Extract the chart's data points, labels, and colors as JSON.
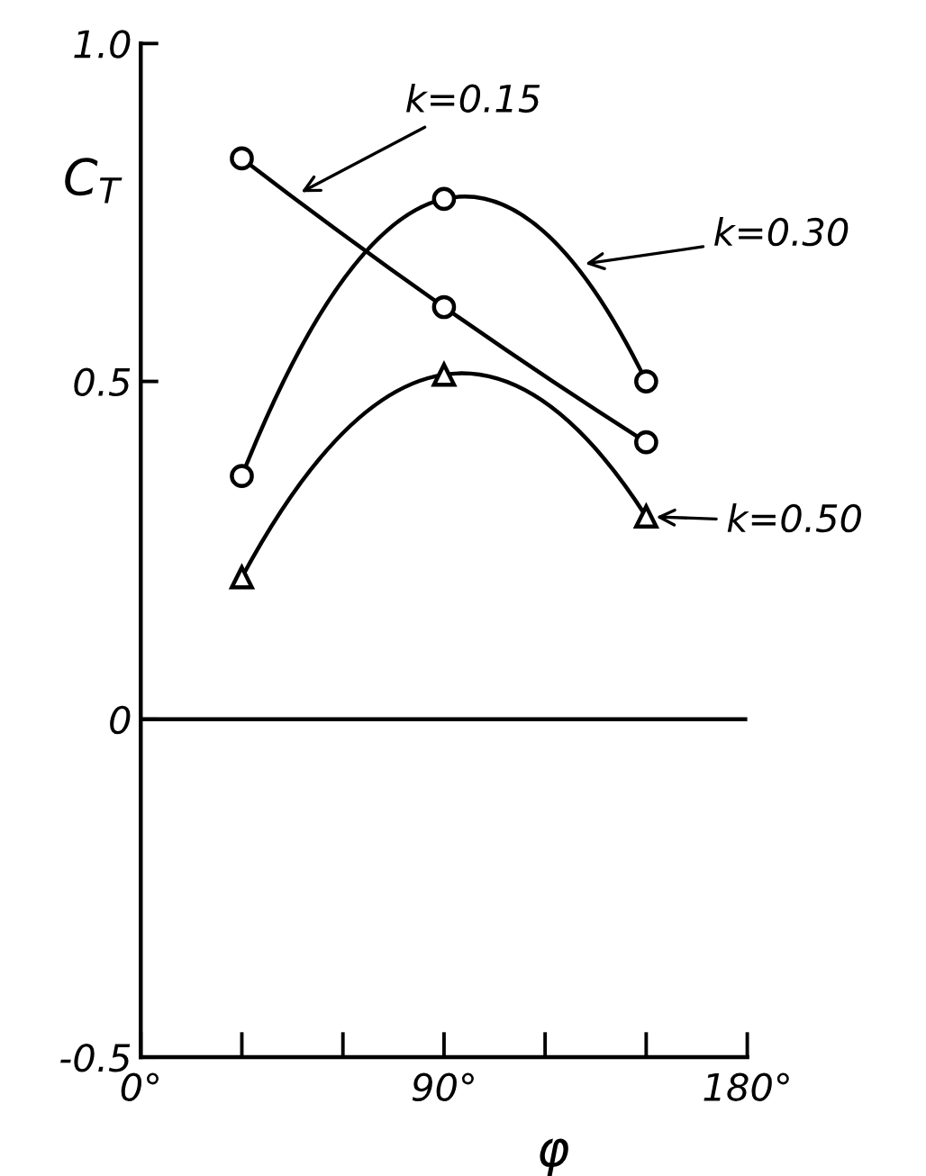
{
  "chart_data": {
    "type": "line",
    "ylabel": "C$_{T}$",
    "xlabel": "φ",
    "xlim": [
      0,
      180
    ],
    "xticks": [
      {
        "value": 0,
        "label": "0°"
      },
      {
        "value": 30,
        "label": null
      },
      {
        "value": 60,
        "label": null
      },
      {
        "value": 90,
        "label": "90°"
      },
      {
        "value": 120,
        "label": null
      },
      {
        "value": 150,
        "label": null
      },
      {
        "value": 180,
        "label": "180°"
      }
    ],
    "ylim": [
      -0.5,
      1.0
    ],
    "yticks": [
      {
        "value": -0.5,
        "label": "-0.5"
      },
      {
        "value": 0,
        "label": "0"
      },
      {
        "value": 0.5,
        "label": "0.5"
      },
      {
        "value": 1.0,
        "label": "1.0"
      }
    ],
    "grid": false,
    "legend": "right",
    "line_style": "solid",
    "ref_lines": [
      {
        "axis": "y",
        "value": 0,
        "label": null,
        "color": "#000000"
      }
    ],
    "series": [
      {
        "name": "k=0.15",
        "color": "#000000",
        "marker": "circle",
        "x": [
          30,
          90,
          150
        ],
        "values": [
          0.83,
          0.61,
          0.41
        ]
      },
      {
        "name": "k=0.30",
        "color": "#000000",
        "marker": "circle",
        "x": [
          30,
          90,
          150
        ],
        "values": [
          0.36,
          0.77,
          0.5
        ]
      },
      {
        "name": "k=0.50",
        "color": "#000000",
        "marker": "triangle",
        "x": [
          30,
          90,
          150
        ],
        "values": [
          0.21,
          0.51,
          0.3
        ]
      }
    ]
  }
}
